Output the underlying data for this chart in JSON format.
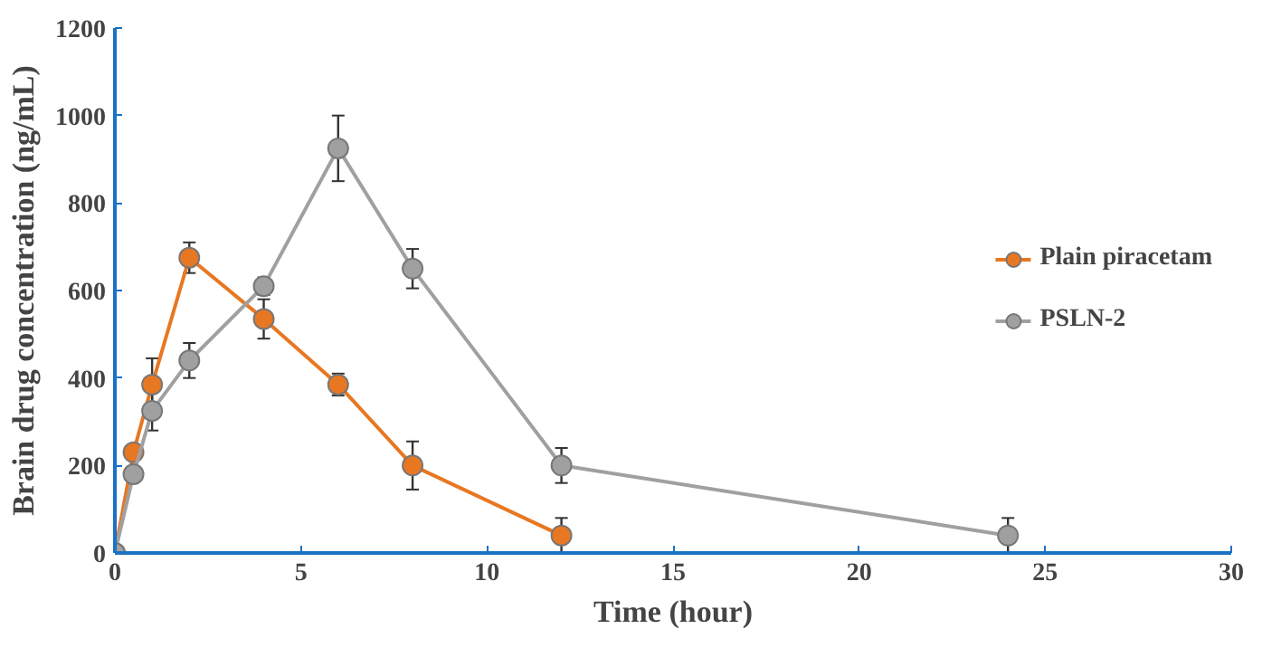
{
  "chart_data": {
    "type": "line",
    "xlabel": "Time (hour)",
    "ylabel": "Brain drug concentration (ng/mL)",
    "xlim": [
      0,
      30
    ],
    "xticks": [
      0,
      5,
      10,
      15,
      20,
      25,
      30
    ],
    "ylim": [
      0,
      1200
    ],
    "yticks": [
      0,
      200,
      400,
      600,
      800,
      1000,
      1200
    ],
    "grid": false,
    "legend": "right",
    "marker": "circle",
    "line_style": "solid",
    "series": [
      {
        "name": "Plain piracetam",
        "color": "#e87722",
        "x": [
          0,
          0.5,
          1,
          2,
          4,
          6,
          8,
          12
        ],
        "values": [
          0,
          230,
          385,
          675,
          535,
          385,
          200,
          40
        ],
        "errors": [
          0,
          15,
          60,
          35,
          45,
          25,
          55,
          40
        ]
      },
      {
        "name": "PSLN-2",
        "color": "#a0a0a0",
        "x": [
          0,
          0.5,
          1,
          2,
          4,
          6,
          8,
          12,
          24
        ],
        "values": [
          0,
          180,
          325,
          440,
          610,
          925,
          650,
          200,
          40
        ],
        "errors": [
          0,
          15,
          45,
          40,
          20,
          75,
          45,
          40,
          40
        ]
      }
    ]
  }
}
